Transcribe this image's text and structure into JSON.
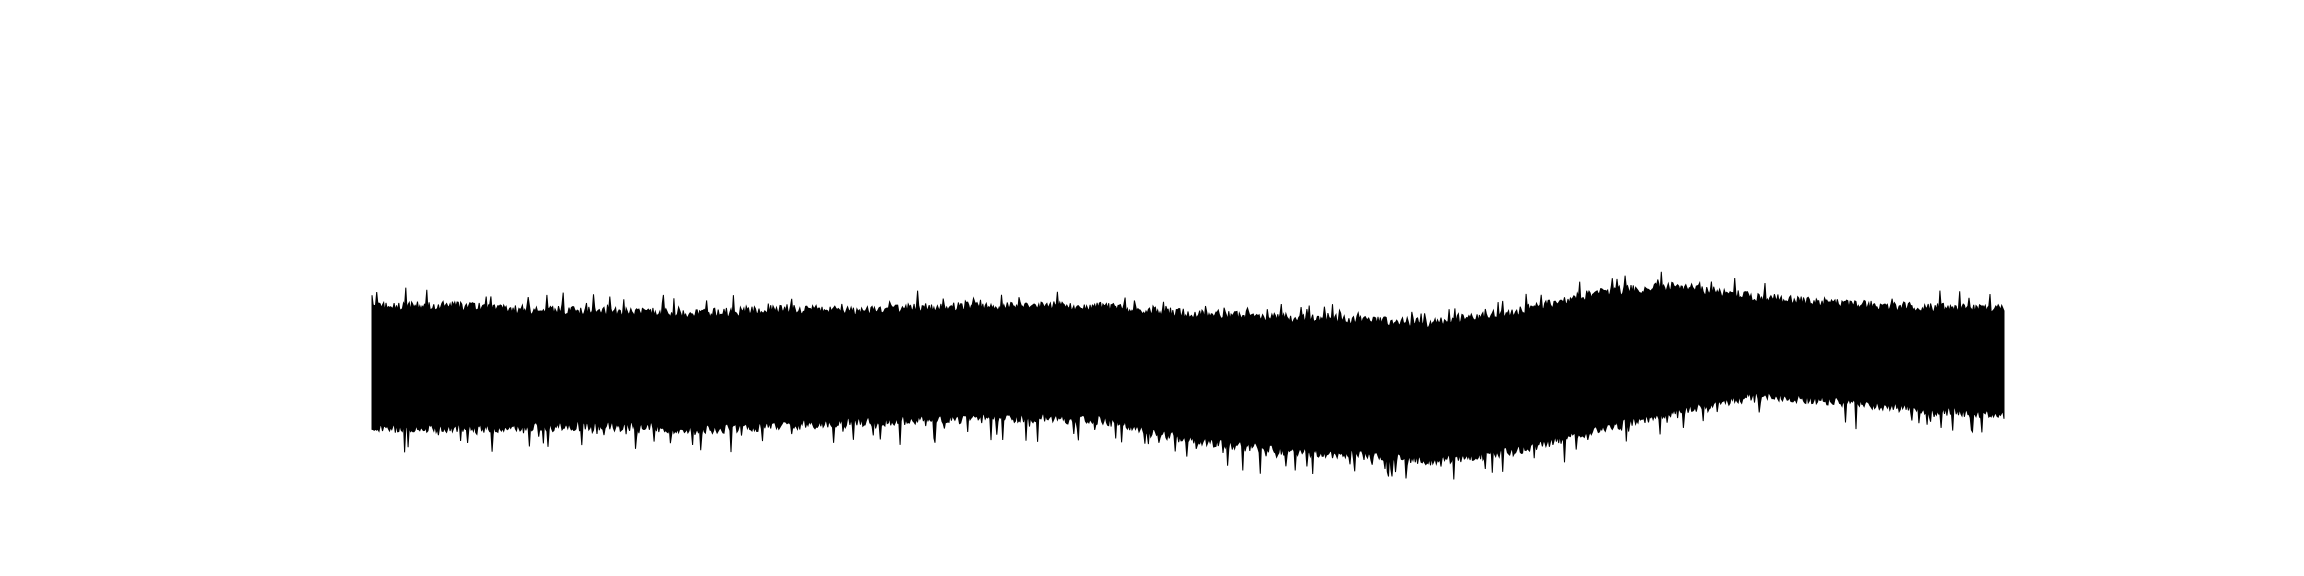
{
  "chart_data": {
    "type": "area",
    "title": "",
    "xlabel": "",
    "ylabel": "",
    "grid": false,
    "legend": "none",
    "axes_visible": false,
    "fill_color": "#000000",
    "background_color": "#ffffff",
    "x": [
      0,
      0.05,
      0.1,
      0.15,
      0.2,
      0.25,
      0.3,
      0.35,
      0.4,
      0.45,
      0.5,
      0.55,
      0.6,
      0.65,
      0.7,
      0.75,
      0.8,
      0.85,
      0.9,
      0.95,
      1.0
    ],
    "ylim": [
      -1,
      1
    ],
    "series": [
      {
        "values_upper": [
          0.33,
          0.34,
          0.31,
          0.3,
          0.29,
          0.32,
          0.31,
          0.33,
          0.34,
          0.33,
          0.29,
          0.27,
          0.25,
          0.23,
          0.3,
          0.42,
          0.46,
          0.39,
          0.35,
          0.33,
          0.32
        ],
        "values_lower": [
          -0.42,
          -0.43,
          -0.42,
          -0.41,
          -0.44,
          -0.41,
          -0.39,
          -0.37,
          -0.36,
          -0.38,
          -0.5,
          -0.56,
          -0.59,
          -0.63,
          -0.57,
          -0.44,
          -0.32,
          -0.22,
          -0.26,
          -0.31,
          -0.35
        ]
      }
    ]
  }
}
